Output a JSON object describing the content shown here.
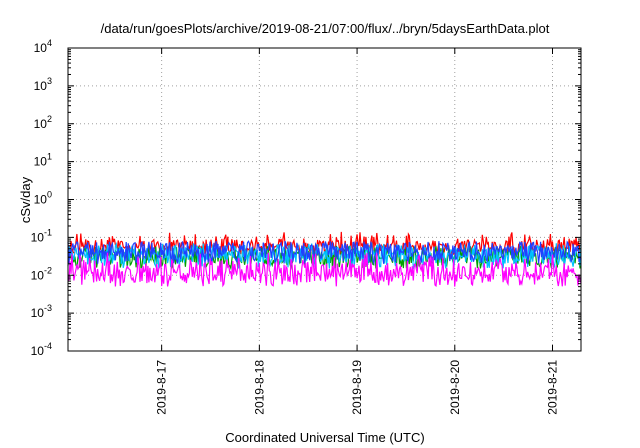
{
  "chart_data": {
    "type": "line",
    "title": "/data/run/goesPlots/archive/2019-08-21/07:00/flux/../bryn/5daysEarthData.plot",
    "xlabel": "Coordinated Universal Time (UTC)",
    "ylabel": "cSv/day",
    "yscale": "log",
    "ylim": [
      0.0001,
      10000
    ],
    "xlim": [
      "2019-08-16T01:00",
      "2019-08-21T07:00"
    ],
    "grid": true,
    "legend": "none",
    "y_ticks": [
      {
        "base": "10",
        "exp": "4",
        "value": 10000
      },
      {
        "base": "10",
        "exp": "3",
        "value": 1000
      },
      {
        "base": "10",
        "exp": "2",
        "value": 100
      },
      {
        "base": "10",
        "exp": "1",
        "value": 10
      },
      {
        "base": "10",
        "exp": "0",
        "value": 1
      },
      {
        "base": "10",
        "exp": "-1",
        "value": 0.1
      },
      {
        "base": "10",
        "exp": "-2",
        "value": 0.01
      },
      {
        "base": "10",
        "exp": "-3",
        "value": 0.001
      },
      {
        "base": "10",
        "exp": "-4",
        "value": 0.0001
      }
    ],
    "x_ticks": [
      {
        "label": "2019-8-17",
        "value": "2019-08-17T00:00"
      },
      {
        "label": "2019-8-18",
        "value": "2019-08-18T00:00"
      },
      {
        "label": "2019-8-19",
        "value": "2019-08-19T00:00"
      },
      {
        "label": "2019-8-20",
        "value": "2019-08-20T00:00"
      },
      {
        "label": "2019-8-21",
        "value": "2019-08-21T00:00"
      }
    ],
    "series": [
      {
        "color": "#ff0000",
        "y_typical": 0.06,
        "y_min": 0.035,
        "y_max": 0.14
      },
      {
        "color": "#00a000",
        "y_typical": 0.032,
        "y_min": 0.015,
        "y_max": 0.06
      },
      {
        "color": "#00c0ff",
        "y_typical": 0.035,
        "y_min": 0.015,
        "y_max": 0.07
      },
      {
        "color": "#2040ff",
        "y_typical": 0.045,
        "y_min": 0.02,
        "y_max": 0.08
      },
      {
        "color": "#ff00ff",
        "y_typical": 0.012,
        "y_min": 0.005,
        "y_max": 0.04
      }
    ]
  }
}
